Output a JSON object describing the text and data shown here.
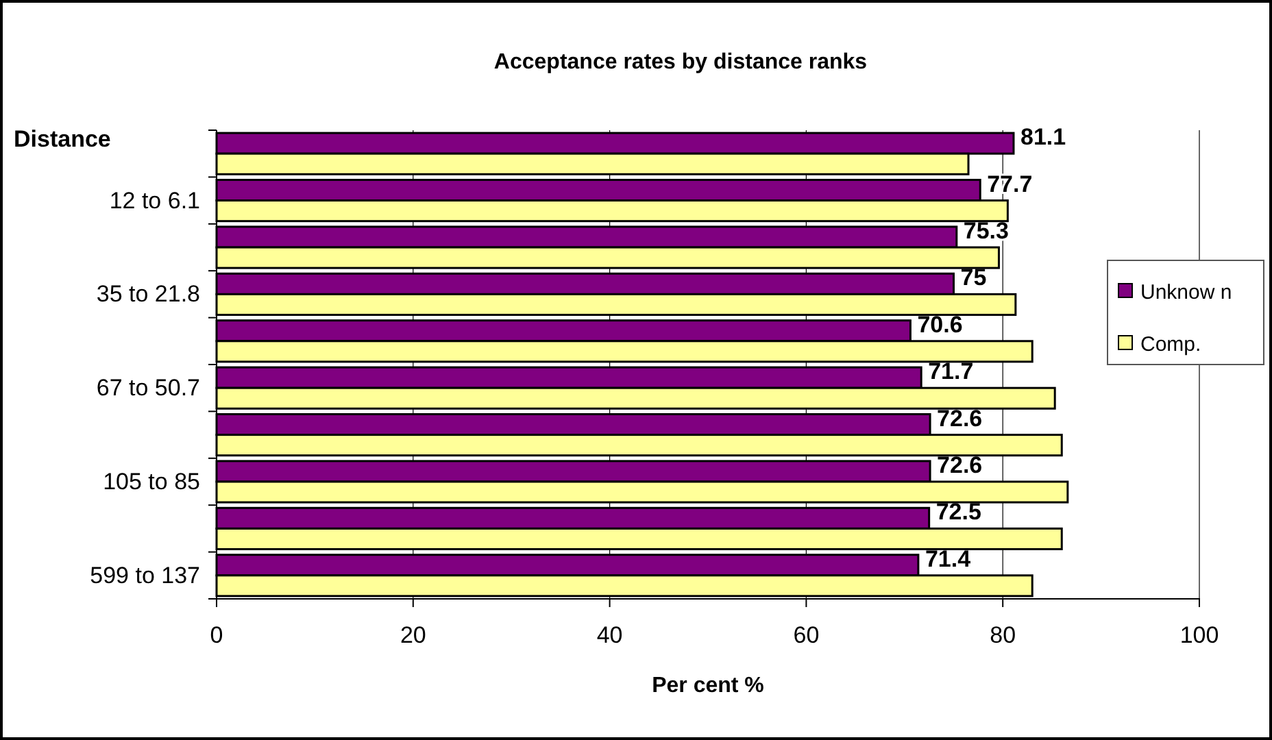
{
  "chart_data": {
    "type": "bar",
    "orientation": "horizontal",
    "title": "Acceptance rates by distance ranks",
    "ylabel": "Distance",
    "xlabel": "Per cent %",
    "categories": [
      null,
      "12 to 6.1",
      null,
      "35 to 21.8",
      null,
      "67 to 50.7",
      null,
      "105 to 85",
      null,
      "599 to 137"
    ],
    "series": [
      {
        "name": "Unknow n",
        "color": "#800080",
        "values": [
          81.1,
          77.7,
          75.3,
          75,
          70.6,
          71.7,
          72.6,
          72.6,
          72.5,
          71.4
        ],
        "value_labels": [
          "81.1",
          "77.7",
          "75.3",
          "75",
          "70.6",
          "71.7",
          "72.6",
          "72.6",
          "72.5",
          "71.4"
        ]
      },
      {
        "name": "Comp.",
        "color": "#ffff99",
        "values": [
          76.5,
          80.5,
          79.6,
          81.3,
          83.0,
          85.3,
          86.0,
          86.6,
          86.0,
          83.0
        ]
      }
    ],
    "xlim": [
      0,
      100
    ],
    "xticks": [
      0,
      20,
      40,
      60,
      80,
      100
    ],
    "grid": "x",
    "legend": "right"
  }
}
